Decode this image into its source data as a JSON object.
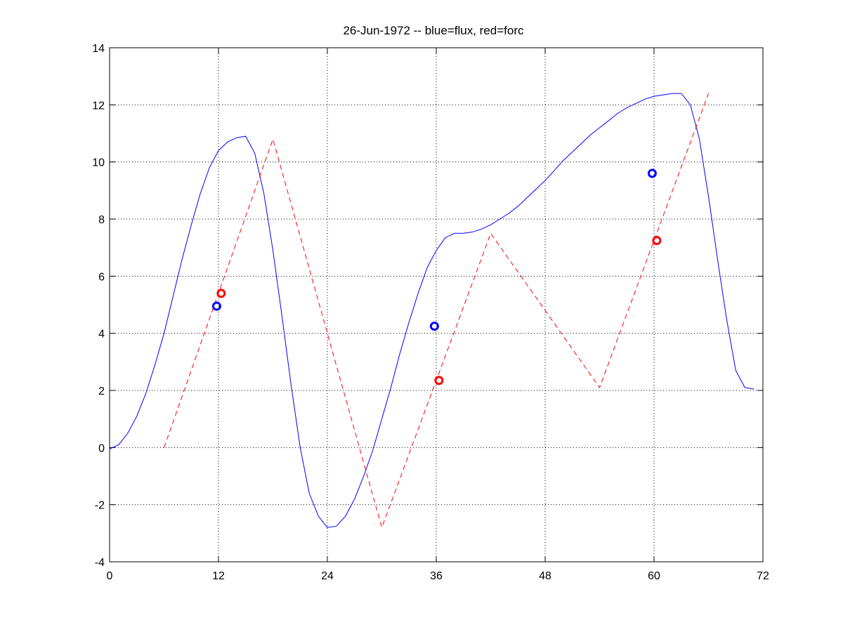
{
  "chart_data": {
    "type": "line",
    "title": "26-Jun-1972 -- blue=flux, red=forc",
    "xlabel": "",
    "ylabel": "",
    "xlim": [
      0,
      72
    ],
    "ylim": [
      -4,
      14
    ],
    "xticks": [
      0,
      12,
      24,
      36,
      48,
      60,
      72
    ],
    "yticks": [
      -4,
      -2,
      0,
      2,
      4,
      6,
      8,
      10,
      12,
      14
    ],
    "grid": true,
    "series": [
      {
        "color": "#0000ff",
        "style": "solid",
        "x": [
          0,
          1,
          2,
          3,
          4,
          5,
          6,
          7,
          8,
          9,
          10,
          11,
          12,
          13,
          14,
          15,
          16,
          17,
          18,
          19,
          20,
          21,
          22,
          23,
          24,
          25,
          26,
          27,
          28,
          29,
          30,
          31,
          32,
          33,
          34,
          35,
          36,
          37,
          38,
          39,
          40,
          41,
          42,
          43,
          44,
          45,
          46,
          47,
          48,
          49,
          50,
          51,
          52,
          53,
          54,
          55,
          56,
          57,
          58,
          59,
          60,
          61,
          62,
          63,
          64,
          65,
          66,
          67,
          68,
          69,
          70,
          71
        ],
        "y": [
          -0.05,
          0.1,
          0.5,
          1.1,
          1.9,
          2.9,
          4.0,
          5.3,
          6.6,
          7.8,
          8.9,
          9.8,
          10.4,
          10.7,
          10.85,
          10.9,
          10.3,
          8.9,
          6.9,
          4.6,
          2.2,
          0.0,
          -1.6,
          -2.4,
          -2.8,
          -2.75,
          -2.4,
          -1.8,
          -1.0,
          -0.1,
          1.0,
          2.1,
          3.3,
          4.4,
          5.4,
          6.3,
          6.9,
          7.35,
          7.5,
          7.5,
          7.55,
          7.65,
          7.8,
          8.0,
          8.2,
          8.45,
          8.75,
          9.05,
          9.35,
          9.7,
          10.05,
          10.35,
          10.65,
          10.95,
          11.2,
          11.45,
          11.7,
          11.9,
          12.05,
          12.2,
          12.3,
          12.35,
          12.4,
          12.4,
          12.0,
          10.8,
          8.8,
          6.6,
          4.5,
          2.7,
          2.1,
          2.05
        ]
      },
      {
        "color": "#ff0000",
        "style": "dashed",
        "x": [
          6,
          18,
          30,
          42,
          54,
          66
        ],
        "y": [
          0.0,
          10.8,
          -2.8,
          7.5,
          2.1,
          12.4
        ]
      }
    ],
    "markers": [
      {
        "color": "#0000ff",
        "x": 11.8,
        "y": 4.95
      },
      {
        "color": "#ff0000",
        "x": 12.3,
        "y": 5.4
      },
      {
        "color": "#0000ff",
        "x": 35.8,
        "y": 4.25
      },
      {
        "color": "#ff0000",
        "x": 36.3,
        "y": 2.35
      },
      {
        "color": "#0000ff",
        "x": 59.8,
        "y": 9.6
      },
      {
        "color": "#ff0000",
        "x": 60.3,
        "y": 7.25
      }
    ]
  }
}
